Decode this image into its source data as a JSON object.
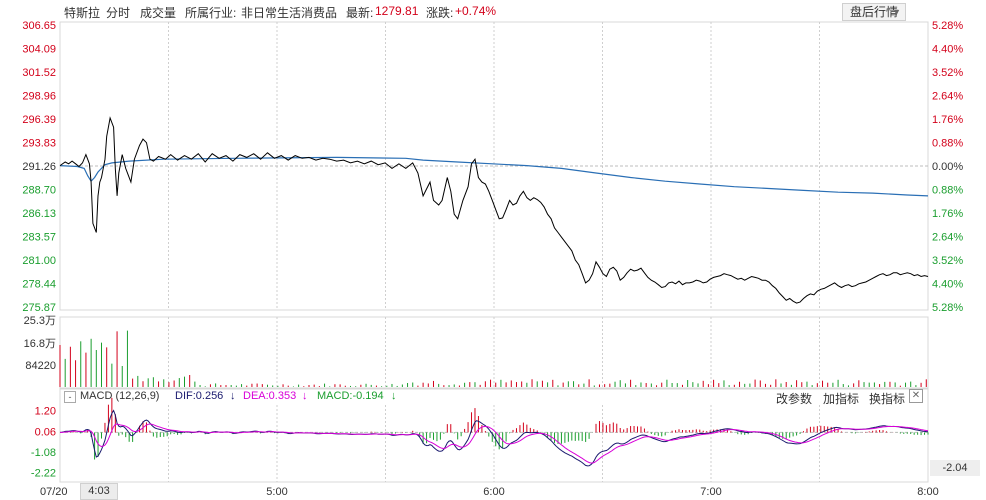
{
  "header": {
    "stock_name": "特斯拉",
    "tab_intraday": "分时",
    "tab_volume": "成交量",
    "industry_label": "所属行业:",
    "industry_value": "非日常生活消费品",
    "latest_label": "最新:",
    "latest_value": "1279.81",
    "change_label": "涨跌:",
    "change_value": "+0.74%",
    "post_market_button": "盘后行情"
  },
  "macd_bar": {
    "title": "MACD (12,26,9)",
    "dif": "DIF:0.256",
    "dea": "DEA:0.353",
    "macd": "MACD:-0.194",
    "tool_params": "改参数",
    "tool_add": "加指标",
    "tool_switch": "换指标"
  },
  "footer": {
    "date_label": "07/20",
    "cursor_time": "4:03",
    "time_ticks": [
      "5:00",
      "6:00",
      "7:00",
      "8:00"
    ],
    "macd_readout": "-2.04"
  },
  "colors": {
    "price_line": "#000000",
    "avg_line": "#2a6fb5",
    "up": "#d3001a",
    "down": "#1a9e2e",
    "dif_line": "#1a1a6e",
    "dea_line": "#d800d8"
  },
  "chart_data": {
    "type": "line",
    "price_axis": {
      "left_ticks": [
        "306.65",
        "304.09",
        "301.52",
        "298.96",
        "296.39",
        "293.83",
        "291.26",
        "288.70",
        "286.13",
        "283.57",
        "281.00",
        "278.44",
        "275.87"
      ],
      "right_ticks": [
        "5.28%",
        "4.40%",
        "3.52%",
        "2.64%",
        "1.76%",
        "0.88%",
        "0.00%",
        "0.88%",
        "1.76%",
        "2.64%",
        "3.52%",
        "4.40%",
        "5.28%"
      ],
      "ylim": [
        275.87,
        306.65
      ]
    },
    "x_ticks": [
      "5:00",
      "6:00",
      "7:00",
      "8:00"
    ],
    "x_range": [
      "4:00",
      "8:00"
    ],
    "price_series": [
      [
        0,
        291.3
      ],
      [
        3,
        291.7
      ],
      [
        5,
        291.5
      ],
      [
        7,
        291.8
      ],
      [
        9,
        291.5
      ],
      [
        11,
        291.2
      ],
      [
        13,
        291.6
      ],
      [
        15,
        292.5
      ],
      [
        17,
        291.5
      ],
      [
        18,
        289.5
      ],
      [
        19,
        285.0
      ],
      [
        20,
        284.5
      ],
      [
        21,
        284.0
      ],
      [
        22,
        288.0
      ],
      [
        23,
        289.5
      ],
      [
        24,
        290.0
      ],
      [
        26,
        292.0
      ],
      [
        27,
        294.5
      ],
      [
        29,
        296.5
      ],
      [
        31,
        295.5
      ],
      [
        32,
        291.0
      ],
      [
        33,
        288.0
      ],
      [
        34,
        290.5
      ],
      [
        36,
        292.5
      ],
      [
        38,
        291.0
      ],
      [
        41,
        289.5
      ],
      [
        43,
        292.0
      ],
      [
        46,
        293.5
      ],
      [
        48,
        294.2
      ],
      [
        50,
        293.8
      ],
      [
        52,
        292.0
      ],
      [
        54,
        291.8
      ],
      [
        57,
        292.3
      ],
      [
        61,
        292.0
      ],
      [
        64,
        292.5
      ],
      [
        68,
        291.9
      ],
      [
        72,
        292.4
      ],
      [
        76,
        292.0
      ],
      [
        80,
        292.6
      ],
      [
        84,
        291.7
      ],
      [
        88,
        292.6
      ],
      [
        92,
        292.1
      ],
      [
        96,
        292.4
      ],
      [
        100,
        291.8
      ],
      [
        104,
        292.5
      ],
      [
        108,
        292.2
      ],
      [
        112,
        292.6
      ],
      [
        116,
        292.0
      ],
      [
        120,
        292.7
      ],
      [
        124,
        292.1
      ],
      [
        128,
        292.4
      ],
      [
        132,
        291.9
      ],
      [
        136,
        292.4
      ],
      [
        140,
        292.1
      ],
      [
        144,
        292.2
      ],
      [
        148,
        291.9
      ],
      [
        152,
        292.1
      ],
      [
        156,
        292.0
      ],
      [
        160,
        291.8
      ],
      [
        164,
        291.9
      ],
      [
        168,
        291.6
      ],
      [
        172,
        291.8
      ],
      [
        176,
        291.5
      ],
      [
        180,
        291.8
      ],
      [
        184,
        291.4
      ],
      [
        188,
        291.6
      ],
      [
        192,
        291.0
      ],
      [
        196,
        291.5
      ],
      [
        200,
        291.0
      ],
      [
        204,
        291.6
      ],
      [
        207,
        290.5
      ],
      [
        210,
        288.0
      ],
      [
        214,
        289.5
      ],
      [
        216,
        287.5
      ],
      [
        219,
        287.0
      ],
      [
        221,
        287.5
      ],
      [
        224,
        290.0
      ],
      [
        226,
        288.5
      ],
      [
        228,
        286.0
      ],
      [
        230,
        285.5
      ],
      [
        233,
        287.5
      ],
      [
        236,
        289.0
      ],
      [
        238,
        291.5
      ],
      [
        240,
        292.0
      ],
      [
        242,
        290.0
      ],
      [
        244,
        289.5
      ],
      [
        246,
        289.3
      ],
      [
        248,
        288.5
      ],
      [
        250,
        287.5
      ],
      [
        252,
        286.5
      ],
      [
        254,
        285.5
      ],
      [
        256,
        285.6
      ],
      [
        258,
        286.5
      ],
      [
        260,
        287.5
      ],
      [
        262,
        287.0
      ],
      [
        264,
        287.2
      ],
      [
        266,
        288.0
      ],
      [
        268,
        288.5
      ],
      [
        270,
        287.8
      ],
      [
        272,
        287.5
      ],
      [
        274,
        287.8
      ],
      [
        276,
        287.6
      ],
      [
        278,
        287.3
      ],
      [
        280,
        286.8
      ],
      [
        282,
        286.0
      ],
      [
        284,
        285.5
      ],
      [
        286,
        284.5
      ],
      [
        288,
        284.0
      ],
      [
        290,
        283.5
      ],
      [
        292,
        283.0
      ],
      [
        294,
        282.5
      ],
      [
        296,
        282.0
      ],
      [
        298,
        281.0
      ],
      [
        300,
        280.5
      ],
      [
        302,
        279.5
      ],
      [
        304,
        278.5
      ],
      [
        306,
        278.8
      ],
      [
        308,
        279.5
      ],
      [
        310,
        280.8
      ],
      [
        312,
        280.2
      ],
      [
        314,
        279.5
      ],
      [
        316,
        279.2
      ],
      [
        318,
        280.0
      ],
      [
        320,
        280.2
      ],
      [
        322,
        279.8
      ],
      [
        324,
        278.8
      ],
      [
        326,
        279.1
      ],
      [
        328,
        279.6
      ],
      [
        330,
        280.0
      ],
      [
        332,
        279.8
      ],
      [
        334,
        279.9
      ],
      [
        336,
        280.1
      ],
      [
        338,
        279.6
      ],
      [
        340,
        279.1
      ],
      [
        342,
        278.8
      ],
      [
        344,
        278.6
      ],
      [
        346,
        278.3
      ],
      [
        348,
        278.0
      ],
      [
        350,
        278.1
      ],
      [
        352,
        278.5
      ],
      [
        354,
        278.6
      ],
      [
        356,
        278.4
      ],
      [
        358,
        278.7
      ],
      [
        360,
        278.3
      ],
      [
        362,
        278.5
      ],
      [
        364,
        278.5
      ],
      [
        366,
        278.6
      ],
      [
        368,
        278.8
      ],
      [
        370,
        278.7
      ],
      [
        372,
        278.5
      ],
      [
        374,
        278.6
      ],
      [
        376,
        278.9
      ],
      [
        378,
        279.1
      ],
      [
        380,
        279.2
      ],
      [
        382,
        279.3
      ],
      [
        384,
        279.5
      ],
      [
        386,
        279.4
      ],
      [
        388,
        279.3
      ],
      [
        390,
        279.1
      ],
      [
        392,
        278.9
      ],
      [
        394,
        279.0
      ],
      [
        396,
        278.8
      ],
      [
        398,
        279.0
      ],
      [
        400,
        279.2
      ],
      [
        402,
        279.1
      ],
      [
        404,
        279.0
      ],
      [
        406,
        278.8
      ],
      [
        408,
        278.8
      ],
      [
        410,
        278.6
      ],
      [
        412,
        278.2
      ],
      [
        414,
        277.9
      ],
      [
        416,
        277.4
      ],
      [
        418,
        277.0
      ],
      [
        420,
        276.6
      ],
      [
        422,
        276.8
      ],
      [
        424,
        276.5
      ],
      [
        426,
        276.3
      ],
      [
        428,
        276.4
      ],
      [
        430,
        276.8
      ],
      [
        432,
        277.1
      ],
      [
        434,
        277.3
      ],
      [
        436,
        277.2
      ],
      [
        438,
        277.6
      ],
      [
        440,
        277.8
      ],
      [
        442,
        277.9
      ],
      [
        444,
        278.1
      ],
      [
        446,
        278.3
      ],
      [
        448,
        278.5
      ],
      [
        450,
        278.2
      ],
      [
        452,
        278.0
      ],
      [
        454,
        278.2
      ],
      [
        456,
        278.3
      ],
      [
        458,
        278.1
      ],
      [
        460,
        278.2
      ],
      [
        462,
        278.4
      ],
      [
        464,
        278.5
      ],
      [
        466,
        278.6
      ],
      [
        468,
        278.8
      ],
      [
        470,
        279.0
      ],
      [
        472,
        279.2
      ],
      [
        474,
        279.4
      ],
      [
        476,
        279.5
      ],
      [
        478,
        279.3
      ],
      [
        480,
        279.4
      ],
      [
        482,
        279.6
      ],
      [
        484,
        279.6
      ],
      [
        486,
        279.4
      ],
      [
        488,
        279.5
      ],
      [
        490,
        279.6
      ],
      [
        492,
        279.5
      ],
      [
        494,
        279.3
      ],
      [
        496,
        279.4
      ],
      [
        498,
        279.2
      ],
      [
        500,
        279.3
      ],
      [
        502,
        279.2
      ]
    ],
    "avg_series": [
      [
        0,
        291.3
      ],
      [
        10,
        291.2
      ],
      [
        14,
        291.0
      ],
      [
        16,
        290.2
      ],
      [
        18,
        289.6
      ],
      [
        20,
        290.0
      ],
      [
        22,
        290.6
      ],
      [
        26,
        291.4
      ],
      [
        30,
        291.6
      ],
      [
        40,
        291.8
      ],
      [
        60,
        292.0
      ],
      [
        100,
        292.1
      ],
      [
        160,
        292.2
      ],
      [
        200,
        292.1
      ],
      [
        210,
        291.9
      ],
      [
        230,
        291.7
      ],
      [
        250,
        291.5
      ],
      [
        270,
        291.3
      ],
      [
        290,
        291.0
      ],
      [
        310,
        290.5
      ],
      [
        330,
        290.0
      ],
      [
        350,
        289.6
      ],
      [
        370,
        289.3
      ],
      [
        390,
        289.0
      ],
      [
        410,
        288.8
      ],
      [
        430,
        288.6
      ],
      [
        450,
        288.4
      ],
      [
        470,
        288.3
      ],
      [
        490,
        288.1
      ],
      [
        502,
        288.0
      ]
    ],
    "volume_axis": {
      "ticks": [
        "25.3万",
        "16.8万",
        "84220"
      ],
      "ymax": 253000
    },
    "macd_axis": {
      "ticks": [
        "1.20",
        "0.06",
        "-1.08",
        "-2.22"
      ],
      "ylim": [
        -2.4,
        1.4
      ]
    }
  }
}
